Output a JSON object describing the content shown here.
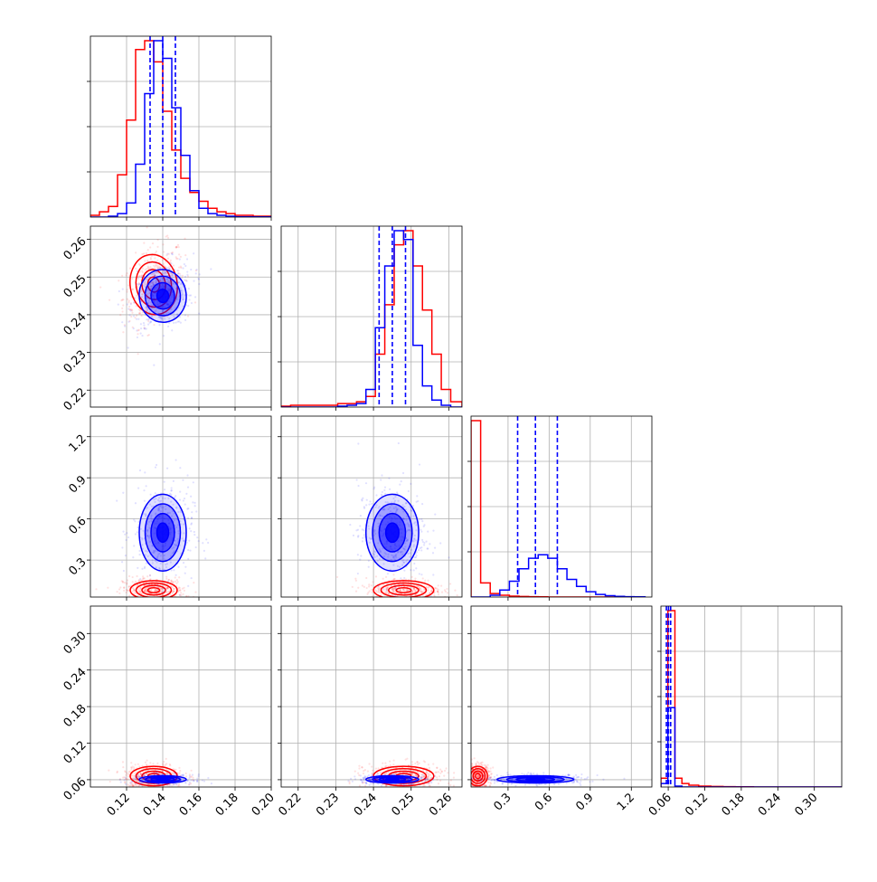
{
  "chart_data": {
    "type": "corner",
    "parameters": [
      {
        "range": [
          0.1,
          0.2
        ],
        "ticks": [
          "0.12",
          "0.14",
          "0.16",
          "0.18",
          "0.20"
        ],
        "tick_values": [
          0.12,
          0.14,
          0.16,
          0.18,
          0.2
        ]
      },
      {
        "range": [
          0.2155,
          0.2635
        ],
        "ticks": [
          "0.22",
          "0.23",
          "0.24",
          "0.25",
          "0.26"
        ],
        "tick_values": [
          0.22,
          0.23,
          0.24,
          0.25,
          0.26
        ]
      },
      {
        "range": [
          0.03,
          1.35
        ],
        "ticks": [
          "0.3",
          "0.6",
          "0.9",
          "1.2"
        ],
        "tick_values": [
          0.3,
          0.6,
          0.9,
          1.2
        ]
      },
      {
        "range": [
          0.048,
          0.345
        ],
        "ticks": [
          "0.06",
          "0.12",
          "0.18",
          "0.24",
          "0.30"
        ],
        "tick_values": [
          0.06,
          0.12,
          0.18,
          0.24,
          0.3
        ]
      }
    ],
    "series": [
      {
        "color": "#ff0000",
        "means": [
          0.135,
          0.248,
          0.08,
          0.066
        ],
        "sds": [
          0.0065,
          0.004,
          0.035,
          0.008
        ],
        "corr_01": 0.35,
        "histograms": [
          {
            "edges": [
              0.1,
              0.105,
              0.11,
              0.115,
              0.12,
              0.125,
              0.13,
              0.135,
              0.14,
              0.145,
              0.15,
              0.155,
              0.16,
              0.165,
              0.17,
              0.175,
              0.18,
              0.19,
              0.2
            ],
            "counts": [
              0.01,
              0.03,
              0.06,
              0.24,
              0.55,
              0.95,
              1.0,
              0.88,
              0.6,
              0.38,
              0.22,
              0.14,
              0.09,
              0.05,
              0.03,
              0.02,
              0.01,
              0.005
            ]
          },
          {
            "edges": [
              0.2155,
              0.218,
              0.2205,
              0.223,
              0.2255,
              0.228,
              0.2305,
              0.233,
              0.2355,
              0.238,
              0.2405,
              0.243,
              0.2455,
              0.248,
              0.2505,
              0.253,
              0.2555,
              0.258,
              0.2605,
              0.2635
            ],
            "counts": [
              0.005,
              0.01,
              0.01,
              0.01,
              0.01,
              0.01,
              0.02,
              0.02,
              0.03,
              0.06,
              0.3,
              0.58,
              0.92,
              1.0,
              0.8,
              0.55,
              0.3,
              0.1,
              0.03
            ]
          },
          {
            "edges": [
              0.03,
              0.1,
              0.17,
              0.24,
              0.31,
              0.38,
              0.45,
              0.52,
              0.59,
              0.66,
              0.73,
              0.8,
              0.87,
              0.94,
              1.01,
              1.08,
              1.15,
              1.22,
              1.3
            ],
            "counts": [
              1.0,
              0.08,
              0.02,
              0.01,
              0.005,
              0.003,
              0.002,
              0.001,
              0,
              0,
              0,
              0,
              0,
              0,
              0,
              0,
              0,
              0
            ]
          },
          {
            "edges": [
              0.048,
              0.0595,
              0.071,
              0.0825,
              0.094,
              0.11,
              0.13,
              0.15,
              0.17,
              0.2,
              0.24,
              0.28,
              0.345
            ],
            "counts": [
              0.05,
              1.0,
              0.05,
              0.02,
              0.01,
              0.005,
              0.003,
              0.002,
              0.001,
              0,
              0,
              0
            ]
          }
        ]
      },
      {
        "color": "#0000ff",
        "means": [
          0.14,
          0.245,
          0.5,
          0.0605
        ],
        "sds": [
          0.0065,
          0.0035,
          0.14,
          0.003
        ],
        "corr_01": 0.25,
        "quantiles": [
          [
            0.133,
            0.14,
            0.147
          ],
          [
            0.2415,
            0.245,
            0.2485
          ],
          [
            0.37,
            0.5,
            0.66
          ],
          [
            0.057,
            0.0605,
            0.064
          ]
        ],
        "histograms": [
          {
            "edges": [
              0.1,
              0.105,
              0.11,
              0.115,
              0.12,
              0.125,
              0.13,
              0.135,
              0.14,
              0.145,
              0.15,
              0.155,
              0.16,
              0.165,
              0.17,
              0.175,
              0.18,
              0.19,
              0.2
            ],
            "counts": [
              0,
              0,
              0.005,
              0.02,
              0.08,
              0.3,
              0.7,
              1.0,
              0.9,
              0.62,
              0.35,
              0.15,
              0.05,
              0.02,
              0.01,
              0.005,
              0.002,
              0.001
            ]
          },
          {
            "edges": [
              0.2155,
              0.218,
              0.2205,
              0.223,
              0.2255,
              0.228,
              0.2305,
              0.233,
              0.2355,
              0.238,
              0.2405,
              0.243,
              0.2455,
              0.248,
              0.2505,
              0.253,
              0.2555,
              0.258,
              0.2605,
              0.2635
            ],
            "counts": [
              0,
              0,
              0,
              0,
              0,
              0,
              0.005,
              0.01,
              0.02,
              0.1,
              0.45,
              0.8,
              1.0,
              0.95,
              0.35,
              0.12,
              0.04,
              0.01,
              0
            ]
          },
          {
            "edges": [
              0.03,
              0.1,
              0.17,
              0.24,
              0.31,
              0.38,
              0.45,
              0.52,
              0.59,
              0.66,
              0.73,
              0.8,
              0.87,
              0.94,
              1.01,
              1.08,
              1.15,
              1.22,
              1.3
            ],
            "counts": [
              0,
              0,
              0.01,
              0.04,
              0.09,
              0.16,
              0.22,
              0.24,
              0.22,
              0.16,
              0.1,
              0.06,
              0.03,
              0.015,
              0.008,
              0.004,
              0.002,
              0.001
            ]
          },
          {
            "edges": [
              0.048,
              0.0595,
              0.071,
              0.0825,
              0.094,
              0.11,
              0.13,
              0.15,
              0.17,
              0.2,
              0.24,
              0.28,
              0.345
            ],
            "counts": [
              0.02,
              0.45,
              0.005,
              0,
              0,
              0,
              0,
              0,
              0,
              0,
              0,
              0
            ]
          }
        ]
      }
    ],
    "grid": true,
    "legend": "none"
  }
}
